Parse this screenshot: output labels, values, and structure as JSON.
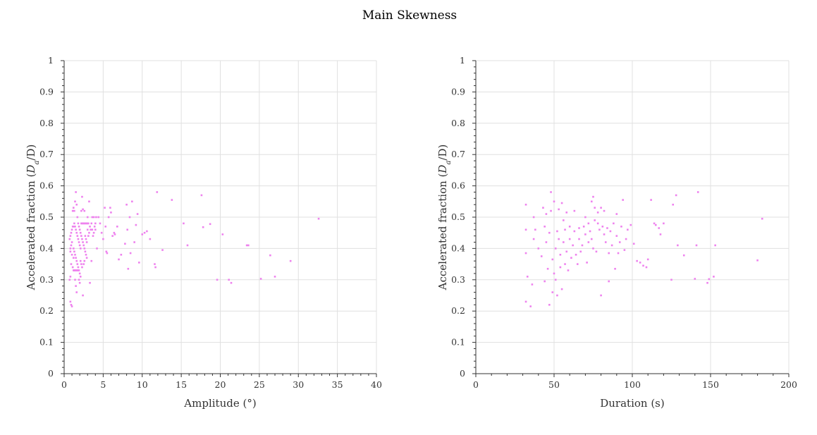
{
  "figure": {
    "title": "Main Skewness"
  },
  "colors": {
    "marker": "#ee82ee",
    "axis": "#333333",
    "grid": "#e0e0e0"
  },
  "chart_data": [
    {
      "type": "scatter",
      "xlabel": "Amplitude (°)",
      "ylabel": "Accelerated fraction (D_a/D)",
      "xlim": [
        0,
        40
      ],
      "ylim": [
        0,
        1
      ],
      "xticks": [
        "0",
        "5",
        "10",
        "15",
        "20",
        "25",
        "30",
        "35",
        "40"
      ],
      "yticks": [
        "0",
        "0.1",
        "0.2",
        "0.3",
        "0.4",
        "0.5",
        "0.6",
        "0.7",
        "0.8",
        "0.9",
        "1"
      ],
      "grid": true,
      "marker": "square",
      "points": [
        [
          0.8,
          0.23
        ],
        [
          0.9,
          0.22
        ],
        [
          1.0,
          0.215
        ],
        [
          0.7,
          0.3
        ],
        [
          0.8,
          0.31
        ],
        [
          0.9,
          0.35
        ],
        [
          1.0,
          0.38
        ],
        [
          0.8,
          0.4
        ],
        [
          0.9,
          0.41
        ],
        [
          1.0,
          0.42
        ],
        [
          0.7,
          0.43
        ],
        [
          0.8,
          0.44
        ],
        [
          0.9,
          0.45
        ],
        [
          1.0,
          0.46
        ],
        [
          1.1,
          0.47
        ],
        [
          0.8,
          0.39
        ],
        [
          1.2,
          0.37
        ],
        [
          1.3,
          0.33
        ],
        [
          1.4,
          0.3
        ],
        [
          1.5,
          0.28
        ],
        [
          1.6,
          0.26
        ],
        [
          1.1,
          0.52
        ],
        [
          1.2,
          0.53
        ],
        [
          1.3,
          0.52
        ],
        [
          1.4,
          0.55
        ],
        [
          1.5,
          0.58
        ],
        [
          1.6,
          0.54
        ],
        [
          1.7,
          0.5
        ],
        [
          1.8,
          0.48
        ],
        [
          1.9,
          0.47
        ],
        [
          2.0,
          0.46
        ],
        [
          2.1,
          0.45
        ],
        [
          2.2,
          0.44
        ],
        [
          2.3,
          0.43
        ],
        [
          2.4,
          0.42
        ],
        [
          2.5,
          0.41
        ],
        [
          2.6,
          0.4
        ],
        [
          2.7,
          0.39
        ],
        [
          2.8,
          0.38
        ],
        [
          2.9,
          0.37
        ],
        [
          1.2,
          0.47
        ],
        [
          1.3,
          0.48
        ],
        [
          1.4,
          0.47
        ],
        [
          1.5,
          0.46
        ],
        [
          1.6,
          0.45
        ],
        [
          1.7,
          0.44
        ],
        [
          1.8,
          0.43
        ],
        [
          1.9,
          0.42
        ],
        [
          2.0,
          0.41
        ],
        [
          2.1,
          0.4
        ],
        [
          1.2,
          0.4
        ],
        [
          1.3,
          0.39
        ],
        [
          1.4,
          0.38
        ],
        [
          1.5,
          0.37
        ],
        [
          1.6,
          0.36
        ],
        [
          1.7,
          0.35
        ],
        [
          1.8,
          0.34
        ],
        [
          1.9,
          0.33
        ],
        [
          2.0,
          0.32
        ],
        [
          2.1,
          0.31
        ],
        [
          1.1,
          0.34
        ],
        [
          1.2,
          0.33
        ],
        [
          1.3,
          0.33
        ],
        [
          1.4,
          0.33
        ],
        [
          1.5,
          0.33
        ],
        [
          1.6,
          0.33
        ],
        [
          1.7,
          0.33
        ],
        [
          1.8,
          0.33
        ],
        [
          1.9,
          0.3
        ],
        [
          2.0,
          0.29
        ],
        [
          2.2,
          0.48
        ],
        [
          2.3,
          0.48
        ],
        [
          2.4,
          0.48
        ],
        [
          2.5,
          0.48
        ],
        [
          2.6,
          0.48
        ],
        [
          2.7,
          0.48
        ],
        [
          2.8,
          0.48
        ],
        [
          2.9,
          0.48
        ],
        [
          3.0,
          0.48
        ],
        [
          3.1,
          0.48
        ],
        [
          2.2,
          0.52
        ],
        [
          2.4,
          0.525
        ],
        [
          2.6,
          0.52
        ],
        [
          2.3,
          0.565
        ],
        [
          2.1,
          0.36
        ],
        [
          2.2,
          0.35
        ],
        [
          2.3,
          0.34
        ],
        [
          2.4,
          0.25
        ],
        [
          2.5,
          0.35
        ],
        [
          2.6,
          0.36
        ],
        [
          2.7,
          0.44
        ],
        [
          2.8,
          0.43
        ],
        [
          2.9,
          0.42
        ],
        [
          3.0,
          0.46
        ],
        [
          3.1,
          0.44
        ],
        [
          3.2,
          0.45
        ],
        [
          3.3,
          0.47
        ],
        [
          3.4,
          0.46
        ],
        [
          3.5,
          0.48
        ],
        [
          3.6,
          0.5
        ],
        [
          3.0,
          0.5
        ],
        [
          3.2,
          0.55
        ],
        [
          3.3,
          0.29
        ],
        [
          3.5,
          0.36
        ],
        [
          3.6,
          0.46
        ],
        [
          3.7,
          0.44
        ],
        [
          3.8,
          0.45
        ],
        [
          3.9,
          0.47
        ],
        [
          4.0,
          0.48
        ],
        [
          4.1,
          0.5
        ],
        [
          3.8,
          0.5
        ],
        [
          4.0,
          0.46
        ],
        [
          4.2,
          0.4
        ],
        [
          4.4,
          0.5
        ],
        [
          4.6,
          0.48
        ],
        [
          4.8,
          0.45
        ],
        [
          5.0,
          0.43
        ],
        [
          5.2,
          0.53
        ],
        [
          5.3,
          0.47
        ],
        [
          5.4,
          0.39
        ],
        [
          5.5,
          0.385
        ],
        [
          5.7,
          0.5
        ],
        [
          5.9,
          0.53
        ],
        [
          6.0,
          0.515
        ],
        [
          6.2,
          0.44
        ],
        [
          6.4,
          0.45
        ],
        [
          6.5,
          0.445
        ],
        [
          6.8,
          0.47
        ],
        [
          7.0,
          0.365
        ],
        [
          7.3,
          0.38
        ],
        [
          7.8,
          0.415
        ],
        [
          8.0,
          0.54
        ],
        [
          8.1,
          0.46
        ],
        [
          8.2,
          0.335
        ],
        [
          8.4,
          0.5
        ],
        [
          8.5,
          0.385
        ],
        [
          8.7,
          0.55
        ],
        [
          9.0,
          0.42
        ],
        [
          9.2,
          0.475
        ],
        [
          9.4,
          0.51
        ],
        [
          9.6,
          0.355
        ],
        [
          10.0,
          0.445
        ],
        [
          10.3,
          0.45
        ],
        [
          10.6,
          0.455
        ],
        [
          11.0,
          0.43
        ],
        [
          11.6,
          0.35
        ],
        [
          11.7,
          0.34
        ],
        [
          11.9,
          0.58
        ],
        [
          12.6,
          0.395
        ],
        [
          13.8,
          0.555
        ],
        [
          15.3,
          0.48
        ],
        [
          15.8,
          0.41
        ],
        [
          17.6,
          0.57
        ],
        [
          17.8,
          0.468
        ],
        [
          18.7,
          0.478
        ],
        [
          19.6,
          0.3
        ],
        [
          20.3,
          0.445
        ],
        [
          21.1,
          0.3
        ],
        [
          21.4,
          0.29
        ],
        [
          23.4,
          0.41
        ],
        [
          23.6,
          0.41
        ],
        [
          25.2,
          0.303
        ],
        [
          26.4,
          0.378
        ],
        [
          27.0,
          0.31
        ],
        [
          29.0,
          0.36
        ],
        [
          32.6,
          0.495
        ]
      ]
    },
    {
      "type": "scatter",
      "xlabel": "Duration (s)",
      "ylabel": "Accelerated fraction (D_a/D)",
      "xlim": [
        0,
        200
      ],
      "ylim": [
        0,
        1
      ],
      "xticks": [
        "0",
        "50",
        "100",
        "150",
        "200"
      ],
      "yticks": [
        "0",
        "0.1",
        "0.2",
        "0.3",
        "0.4",
        "0.5",
        "0.6",
        "0.7",
        "0.8",
        "0.9",
        "1"
      ],
      "grid": true,
      "marker": "square",
      "points": [
        [
          32,
          0.54
        ],
        [
          32,
          0.46
        ],
        [
          32,
          0.385
        ],
        [
          33,
          0.31
        ],
        [
          32,
          0.23
        ],
        [
          35,
          0.215
        ],
        [
          36,
          0.285
        ],
        [
          37,
          0.43
        ],
        [
          37,
          0.5
        ],
        [
          38,
          0.46
        ],
        [
          40,
          0.4
        ],
        [
          42,
          0.375
        ],
        [
          43,
          0.53
        ],
        [
          44,
          0.47
        ],
        [
          44,
          0.295
        ],
        [
          45,
          0.42
        ],
        [
          45,
          0.51
        ],
        [
          46,
          0.335
        ],
        [
          47,
          0.22
        ],
        [
          47,
          0.45
        ],
        [
          48,
          0.58
        ],
        [
          48,
          0.52
        ],
        [
          49,
          0.26
        ],
        [
          49,
          0.365
        ],
        [
          50,
          0.32
        ],
        [
          50,
          0.55
        ],
        [
          51,
          0.3
        ],
        [
          51,
          0.4
        ],
        [
          52,
          0.25
        ],
        [
          52,
          0.455
        ],
        [
          53,
          0.525
        ],
        [
          53,
          0.43
        ],
        [
          54,
          0.38
        ],
        [
          54,
          0.34
        ],
        [
          55,
          0.545
        ],
        [
          55,
          0.27
        ],
        [
          56,
          0.42
        ],
        [
          56,
          0.49
        ],
        [
          57,
          0.35
        ],
        [
          57,
          0.46
        ],
        [
          58,
          0.39
        ],
        [
          58,
          0.515
        ],
        [
          59,
          0.33
        ],
        [
          60,
          0.43
        ],
        [
          60,
          0.47
        ],
        [
          61,
          0.37
        ],
        [
          62,
          0.41
        ],
        [
          63,
          0.455
        ],
        [
          63,
          0.52
        ],
        [
          64,
          0.38
        ],
        [
          65,
          0.35
        ],
        [
          66,
          0.465
        ],
        [
          66,
          0.43
        ],
        [
          67,
          0.39
        ],
        [
          68,
          0.41
        ],
        [
          69,
          0.47
        ],
        [
          70,
          0.445
        ],
        [
          70,
          0.5
        ],
        [
          71,
          0.355
        ],
        [
          72,
          0.42
        ],
        [
          72,
          0.48
        ],
        [
          73,
          0.455
        ],
        [
          74,
          0.43
        ],
        [
          74,
          0.55
        ],
        [
          75,
          0.565
        ],
        [
          75,
          0.4
        ],
        [
          76,
          0.49
        ],
        [
          76,
          0.53
        ],
        [
          77,
          0.39
        ],
        [
          78,
          0.48
        ],
        [
          78,
          0.515
        ],
        [
          79,
          0.46
        ],
        [
          80,
          0.25
        ],
        [
          80,
          0.53
        ],
        [
          81,
          0.47
        ],
        [
          82,
          0.52
        ],
        [
          82,
          0.445
        ],
        [
          83,
          0.42
        ],
        [
          84,
          0.465
        ],
        [
          85,
          0.295
        ],
        [
          85,
          0.385
        ],
        [
          86,
          0.455
        ],
        [
          87,
          0.41
        ],
        [
          88,
          0.48
        ],
        [
          89,
          0.335
        ],
        [
          90,
          0.44
        ],
        [
          90,
          0.51
        ],
        [
          91,
          0.385
        ],
        [
          92,
          0.42
        ],
        [
          93,
          0.47
        ],
        [
          94,
          0.555
        ],
        [
          95,
          0.395
        ],
        [
          96,
          0.43
        ],
        [
          97,
          0.46
        ],
        [
          99,
          0.475
        ],
        [
          101,
          0.415
        ],
        [
          103,
          0.36
        ],
        [
          105,
          0.355
        ],
        [
          107,
          0.345
        ],
        [
          109,
          0.34
        ],
        [
          110,
          0.365
        ],
        [
          112,
          0.555
        ],
        [
          114,
          0.48
        ],
        [
          115,
          0.475
        ],
        [
          117,
          0.465
        ],
        [
          118,
          0.445
        ],
        [
          120,
          0.48
        ],
        [
          125,
          0.3
        ],
        [
          126,
          0.54
        ],
        [
          128,
          0.57
        ],
        [
          129,
          0.41
        ],
        [
          133,
          0.378
        ],
        [
          140,
          0.303
        ],
        [
          141,
          0.41
        ],
        [
          142,
          0.58
        ],
        [
          148,
          0.29
        ],
        [
          149,
          0.302
        ],
        [
          152,
          0.31
        ],
        [
          153,
          0.41
        ],
        [
          180,
          0.362
        ],
        [
          183,
          0.495
        ]
      ]
    }
  ]
}
